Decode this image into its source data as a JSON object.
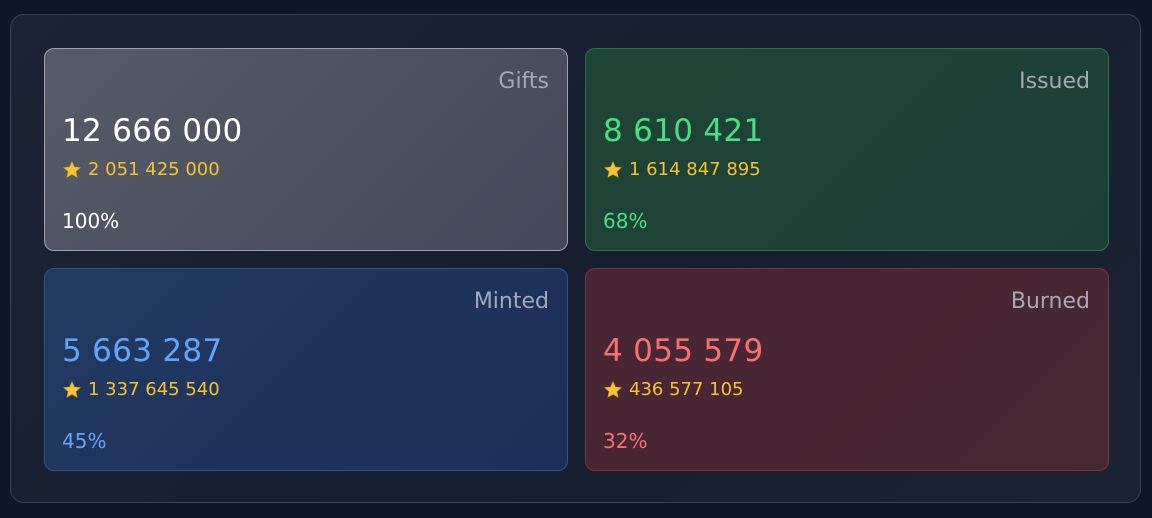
{
  "colors": {
    "gifts_accent": "#ffffff",
    "issued_accent": "#4ade80",
    "minted_accent": "#60a5fa",
    "burned_accent": "#f87171",
    "stars_color": "#f4c430"
  },
  "cards": [
    {
      "title": "Gifts",
      "count": "12 666 000",
      "stars_icon": "star-icon",
      "stars": "2 051 425 000",
      "percent": "100%"
    },
    {
      "title": "Issued",
      "count": "8 610 421",
      "stars_icon": "star-icon",
      "stars": "1 614 847 895",
      "percent": "68%"
    },
    {
      "title": "Minted",
      "count": "5 663 287",
      "stars_icon": "star-icon",
      "stars": "1 337 645 540",
      "percent": "45%"
    },
    {
      "title": "Burned",
      "count": "4 055 579",
      "stars_icon": "star-icon",
      "stars": "436 577 105",
      "percent": "32%"
    }
  ]
}
